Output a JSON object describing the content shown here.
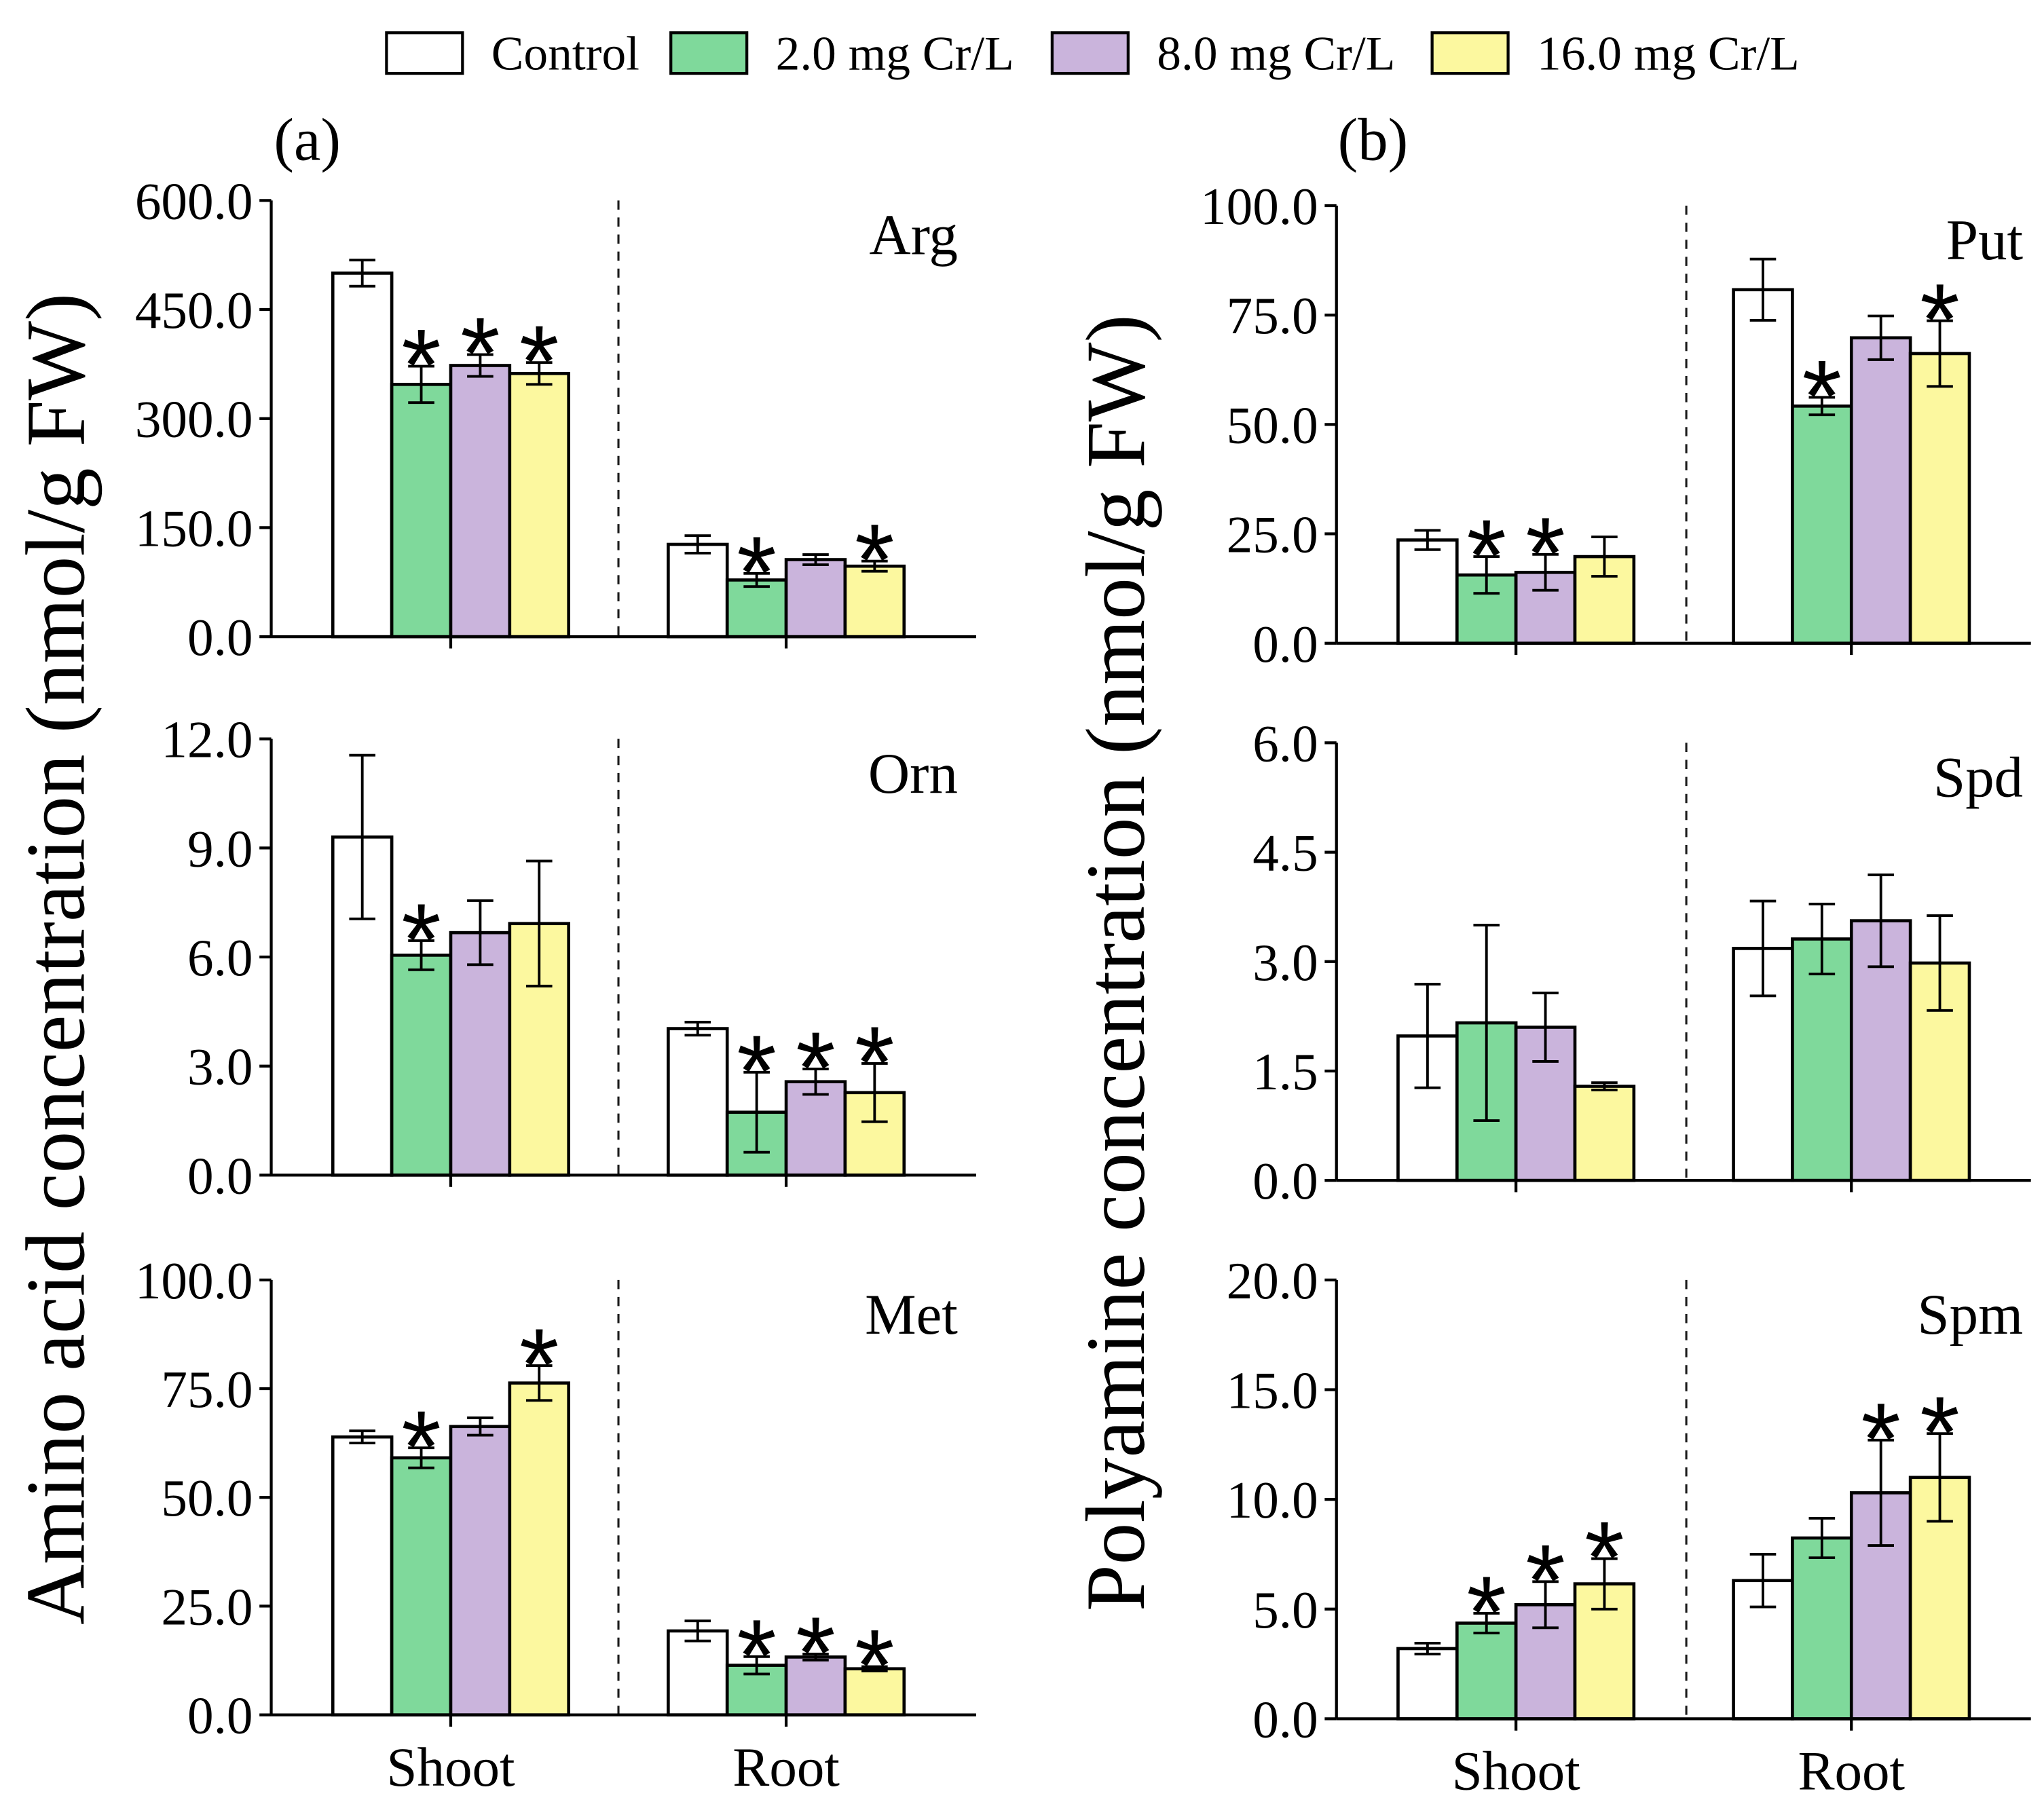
{
  "chart_data": {
    "type": "bar",
    "legend": [
      {
        "name": "Control",
        "color": "#ffffff"
      },
      {
        "name": "2.0 mg Cr/L",
        "color": "#7fd99b"
      },
      {
        "name": "8.0 mg Cr/L",
        "color": "#cab4dc"
      },
      {
        "name": "16.0 mg Cr/L",
        "color": "#fcf89f"
      }
    ],
    "categories": [
      "Shoot",
      "Root"
    ],
    "significance_marker": "*",
    "panels": [
      {
        "label": "(a)",
        "ylabel": "Amino acid concentration (nmol/g FW)",
        "subplots": [
          {
            "title": "Arg",
            "ylim": [
              0,
              600
            ],
            "ytick_labels": [
              "0.0",
              "150.0",
              "300.0",
              "450.0",
              "600.0"
            ],
            "series": [
              {
                "values": [
                  500,
                  127
                ],
                "errors": [
                  18,
                  12
                ],
                "significant": [
                  false,
                  false
                ]
              },
              {
                "values": [
                  347,
                  78
                ],
                "errors": [
                  25,
                  9
                ],
                "significant": [
                  true,
                  true
                ]
              },
              {
                "values": [
                  373,
                  106
                ],
                "errors": [
                  15,
                  7
                ],
                "significant": [
                  true,
                  false
                ]
              },
              {
                "values": [
                  362,
                  97
                ],
                "errors": [
                  15,
                  7
                ],
                "significant": [
                  true,
                  true
                ]
              }
            ]
          },
          {
            "title": "Orn",
            "ylim": [
              0,
              12
            ],
            "ytick_labels": [
              "0.0",
              "3.0",
              "6.0",
              "9.0",
              "12.0"
            ],
            "series": [
              {
                "values": [
                  9.3,
                  4.03
                ],
                "errors": [
                  2.25,
                  0.18
                ],
                "significant": [
                  false,
                  false
                ]
              },
              {
                "values": [
                  6.05,
                  1.73
                ],
                "errors": [
                  0.4,
                  1.1
                ],
                "significant": [
                  true,
                  true
                ]
              },
              {
                "values": [
                  6.67,
                  2.57
                ],
                "errors": [
                  0.88,
                  0.35
                ],
                "significant": [
                  false,
                  true
                ]
              },
              {
                "values": [
                  6.92,
                  2.27
                ],
                "errors": [
                  1.72,
                  0.8
                ],
                "significant": [
                  false,
                  true
                ]
              }
            ]
          },
          {
            "title": "Met",
            "ylim": [
              0,
              100
            ],
            "ytick_labels": [
              "0.0",
              "25.0",
              "50.0",
              "75.0",
              "100.0"
            ],
            "series": [
              {
                "values": [
                  63.9,
                  19.3
                ],
                "errors": [
                  1.4,
                  2.3
                ],
                "significant": [
                  false,
                  false
                ]
              },
              {
                "values": [
                  59.1,
                  11.4
                ],
                "errors": [
                  2.3,
                  2.0
                ],
                "significant": [
                  true,
                  true
                ]
              },
              {
                "values": [
                  66.3,
                  13.3
                ],
                "errors": [
                  2.0,
                  0.7
                ],
                "significant": [
                  false,
                  true
                ]
              },
              {
                "values": [
                  76.3,
                  10.6
                ],
                "errors": [
                  4.0,
                  0.5
                ],
                "significant": [
                  true,
                  true
                ]
              }
            ]
          }
        ]
      },
      {
        "label": "(b)",
        "ylabel": "Polyamine concentration (nmol/g FW)",
        "subplots": [
          {
            "title": "Put",
            "ylim": [
              0,
              100
            ],
            "ytick_labels": [
              "0.0",
              "25.0",
              "50.0",
              "75.0",
              "100.0"
            ],
            "series": [
              {
                "values": [
                  23.6,
                  80.8
                ],
                "errors": [
                  2.2,
                  7.0
                ],
                "significant": [
                  false,
                  false
                ]
              },
              {
                "values": [
                  15.6,
                  54.2
                ],
                "errors": [
                  4.2,
                  2.0
                ],
                "significant": [
                  true,
                  true
                ]
              },
              {
                "values": [
                  16.2,
                  69.8
                ],
                "errors": [
                  4.1,
                  5.0
                ],
                "significant": [
                  true,
                  false
                ]
              },
              {
                "values": [
                  19.8,
                  66.2
                ],
                "errors": [
                  4.5,
                  7.5
                ],
                "significant": [
                  false,
                  true
                ]
              }
            ]
          },
          {
            "title": "Spd",
            "ylim": [
              0,
              6
            ],
            "ytick_labels": [
              "0.0",
              "1.5",
              "3.0",
              "4.5",
              "6.0"
            ],
            "series": [
              {
                "values": [
                  1.98,
                  3.18
                ],
                "errors": [
                  0.71,
                  0.65
                ],
                "significant": [
                  false,
                  false
                ]
              },
              {
                "values": [
                  2.16,
                  3.31
                ],
                "errors": [
                  1.34,
                  0.48
                ],
                "significant": [
                  false,
                  false
                ]
              },
              {
                "values": [
                  2.1,
                  3.56
                ],
                "errors": [
                  0.47,
                  0.63
                ],
                "significant": [
                  false,
                  false
                ]
              },
              {
                "values": [
                  1.29,
                  2.98
                ],
                "errors": [
                  0.05,
                  0.65
                ],
                "significant": [
                  false,
                  false
                ]
              }
            ]
          },
          {
            "title": "Spm",
            "ylim": [
              0,
              20
            ],
            "ytick_labels": [
              "0.0",
              "5.0",
              "10.0",
              "15.0",
              "20.0"
            ],
            "series": [
              {
                "values": [
                  3.2,
                  6.3
                ],
                "errors": [
                  0.25,
                  1.2
                ],
                "significant": [
                  false,
                  false
                ]
              },
              {
                "values": [
                  4.36,
                  8.24
                ],
                "errors": [
                  0.45,
                  0.9
                ],
                "significant": [
                  true,
                  false
                ]
              },
              {
                "values": [
                  5.2,
                  10.3
                ],
                "errors": [
                  1.05,
                  2.4
                ],
                "significant": [
                  true,
                  true
                ]
              },
              {
                "values": [
                  6.15,
                  11.0
                ],
                "errors": [
                  1.15,
                  2.0
                ],
                "significant": [
                  true,
                  true
                ]
              }
            ]
          }
        ]
      }
    ]
  }
}
